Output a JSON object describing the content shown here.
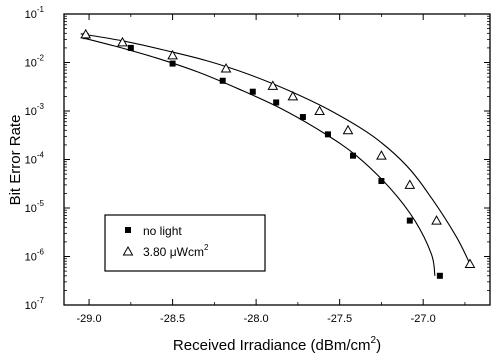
{
  "chart_data": {
    "type": "scatter",
    "xlabel": "Received Irradiance (dBm/cm",
    "xlabel_sup": "2",
    "xlabel_end": ")",
    "ylabel": "Bit Error Rate",
    "xlim": [
      -29.15,
      -26.6
    ],
    "ylim_log10": [
      -7,
      -1
    ],
    "y_scale": "log",
    "x_ticks": [
      -29.0,
      -28.5,
      -28.0,
      -27.5,
      -27.0
    ],
    "x_tick_labels": [
      "-29.0",
      "-28.5",
      "-28.0",
      "-27.5",
      "-27.0"
    ],
    "y_ticks_exp": [
      -7,
      -6,
      -5,
      -4,
      -3,
      -2,
      -1
    ],
    "y_tick_base": "10",
    "y_tick_exps": [
      "-7",
      "-6",
      "-5",
      "-4",
      "-3",
      "-2",
      "-1"
    ],
    "grid": false,
    "legend_position": "bottom-left",
    "legend": {
      "no_light": "no light",
      "uv_prefix": "3.80 ",
      "uv_mu": "μ",
      "uv_unit": "Wcm",
      "uv_sup": "2"
    },
    "series": [
      {
        "name": "no light",
        "marker": "square",
        "x": [
          -29.02,
          -28.75,
          -28.5,
          -28.2,
          -28.02,
          -27.88,
          -27.72,
          -27.57,
          -27.42,
          -27.25,
          -27.08,
          -26.9
        ],
        "y": [
          0.035,
          0.02,
          0.0095,
          0.0042,
          0.0025,
          0.0015,
          0.00075,
          0.00033,
          0.00012,
          3.6e-05,
          5.5e-06,
          4e-07
        ],
        "fit_x": [
          -29.05,
          -28.85,
          -28.6,
          -28.35,
          -28.1,
          -27.85,
          -27.6,
          -27.4,
          -27.2,
          -27.05,
          -26.95,
          -26.93
        ],
        "fit_y": [
          0.033,
          0.022,
          0.0125,
          0.0064,
          0.0028,
          0.00112,
          0.00036,
          0.00012,
          2.6e-05,
          5.5e-06,
          1.1e-06,
          4e-07
        ]
      },
      {
        "name": "3.80 μWcm2",
        "marker": "triangle",
        "x": [
          -29.02,
          -28.8,
          -28.5,
          -28.18,
          -27.9,
          -27.78,
          -27.62,
          -27.45,
          -27.25,
          -27.08,
          -26.92,
          -26.72
        ],
        "y": [
          0.038,
          0.026,
          0.014,
          0.0075,
          0.0033,
          0.002,
          0.001,
          0.0004,
          0.00012,
          3e-05,
          5.5e-06,
          7e-07
        ],
        "fit_x": [
          -29.05,
          -28.8,
          -28.55,
          -28.3,
          -28.05,
          -27.8,
          -27.55,
          -27.3,
          -27.1,
          -26.95,
          -26.8,
          -26.72
        ],
        "fit_y": [
          0.039,
          0.028,
          0.018,
          0.011,
          0.0058,
          0.0026,
          0.001,
          0.0003,
          7.5e-05,
          1.6e-05,
          2.5e-06,
          7e-07
        ]
      }
    ]
  }
}
